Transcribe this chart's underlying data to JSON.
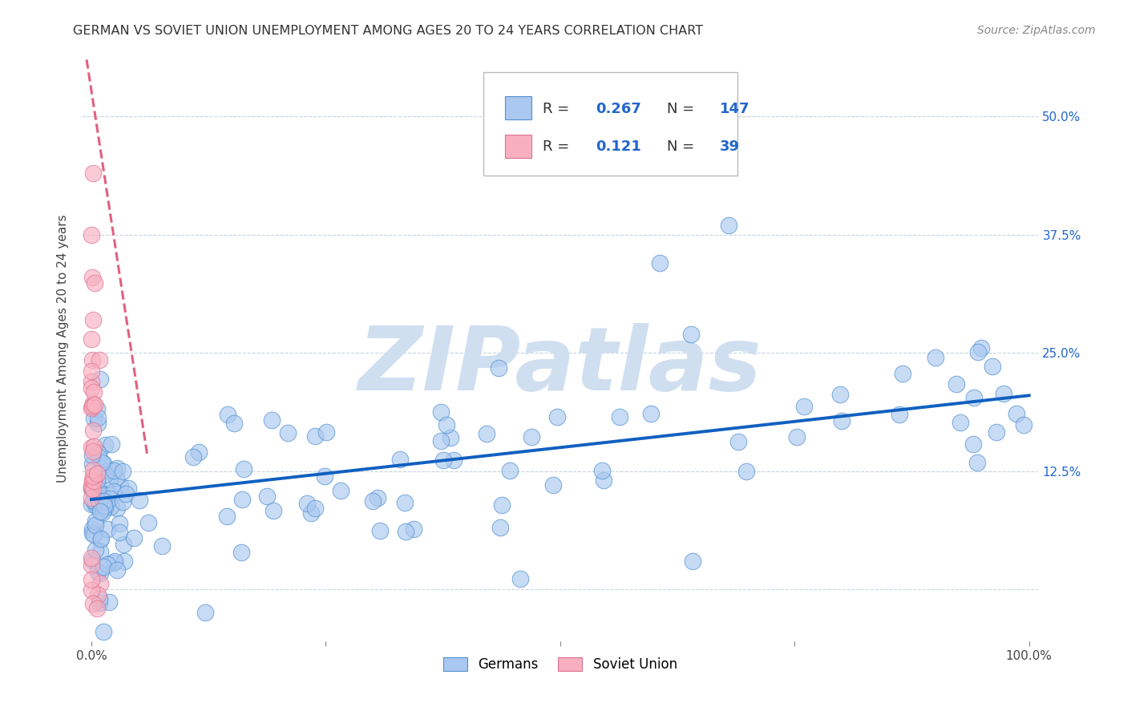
{
  "title": "GERMAN VS SOVIET UNION UNEMPLOYMENT AMONG AGES 20 TO 24 YEARS CORRELATION CHART",
  "source": "Source: ZipAtlas.com",
  "ylabel": "Unemployment Among Ages 20 to 24 years",
  "xlim": [
    -0.01,
    1.01
  ],
  "ylim": [
    -0.055,
    0.565
  ],
  "x_ticks": [
    0.0,
    0.25,
    0.5,
    0.75,
    1.0
  ],
  "x_tick_labels": [
    "0.0%",
    "",
    "",
    "",
    "100.0%"
  ],
  "y_ticks": [
    0.0,
    0.125,
    0.25,
    0.375,
    0.5
  ],
  "y_tick_labels_right": [
    "",
    "12.5%",
    "25.0%",
    "37.5%",
    "50.0%"
  ],
  "german_fill_color": "#aac8f0",
  "german_edge_color": "#5090d0",
  "soviet_fill_color": "#f8b0c0",
  "soviet_edge_color": "#e07090",
  "german_trend_color": "#1060c0",
  "soviet_trend_color": "#e06080",
  "R_german": 0.267,
  "N_german": 147,
  "R_soviet": 0.121,
  "N_soviet": 39,
  "watermark": "ZIPatlas",
  "watermark_color": "#d0dff0",
  "background_color": "#ffffff",
  "grid_color": "#c8d4e0",
  "title_fontsize": 11.5,
  "axis_label_fontsize": 11,
  "tick_fontsize": 11,
  "legend_fontsize": 13,
  "source_fontsize": 10,
  "german_trend_start_y": 0.095,
  "german_trend_end_y": 0.205,
  "soviet_trend_x0": -0.005,
  "soviet_trend_y0": 0.56,
  "soviet_trend_x1": 0.06,
  "soviet_trend_y1": 0.14
}
